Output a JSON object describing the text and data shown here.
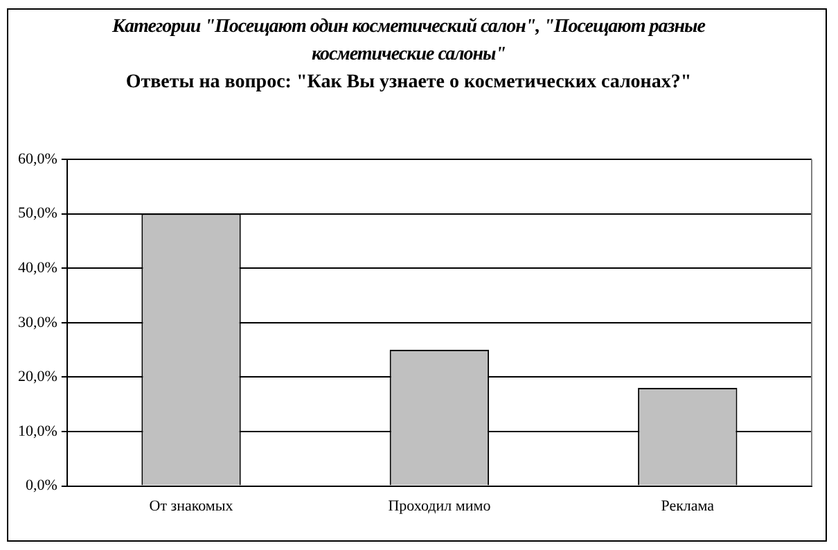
{
  "chart_data": {
    "type": "bar",
    "title": "Категории \"Посещают один косметический салон\", \"Посещают разные косметические салоны\"",
    "subtitle": "Ответы на вопрос: \"Как Вы узнаете о косметических салонах?\"",
    "categories": [
      "От знакомых",
      "Проходил мимо",
      "Реклама"
    ],
    "values": [
      50,
      25,
      18
    ],
    "color": "#c0c0c0",
    "ylim": [
      0,
      60
    ],
    "yticks": [
      {
        "value": 0,
        "label": "0,0%"
      },
      {
        "value": 10,
        "label": "10,0%"
      },
      {
        "value": 20,
        "label": "20,0%"
      },
      {
        "value": 30,
        "label": "30,0%"
      },
      {
        "value": 40,
        "label": "40,0%"
      },
      {
        "value": 50,
        "label": "50,0%"
      },
      {
        "value": 60,
        "label": "60,0%"
      }
    ],
    "grid": "y",
    "legend": false
  }
}
